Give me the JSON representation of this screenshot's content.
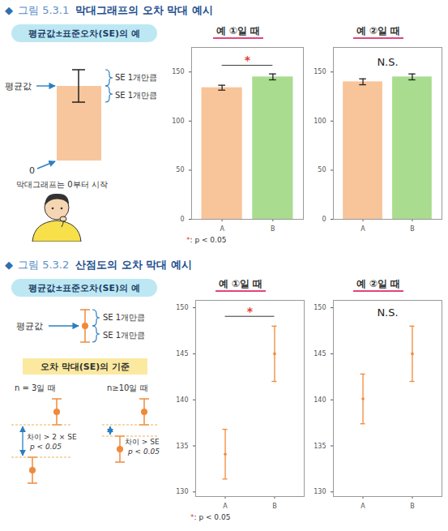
{
  "figures": [
    {
      "bullet": "◆",
      "number": "그림 5.3.1",
      "title": "막대그래프의 오차 막대 예시",
      "schematic": {
        "label": "평균값±표준오차(SE)의 예",
        "mean": "평균값",
        "se_upper": "SE 1개만큼",
        "se_lower": "SE 1개만큼",
        "zero": "0",
        "zero_note": "막대그래프는 0부터 시작"
      }
    },
    {
      "bullet": "◆",
      "number": "그림 5.3.2",
      "title": "산점도의 오차 막대 예시",
      "schematic": {
        "label": "평균값±표준오차(SE)의 예",
        "mean": "평균값",
        "se_upper": "SE 1개만큼",
        "se_lower": "SE 1개만큼",
        "criteria": {
          "title": "오차 막대(SE)의 기준",
          "cases": [
            {
              "n": "n = 3일 때",
              "rule": "차이 > 2 × SE",
              "p": "p < 0.05"
            },
            {
              "n": "n≥10일 때",
              "rule": "차이 > SE",
              "p": "p < 0.05"
            }
          ]
        }
      }
    }
  ],
  "chart_data": [
    {
      "type": "bar",
      "title": "예 ①일 때",
      "categories": [
        "A",
        "B"
      ],
      "values": [
        134,
        145
      ],
      "errors": [
        2.5,
        3
      ],
      "colors": [
        "#f8c49a",
        "#a9dc8f"
      ],
      "ylim": [
        0,
        175
      ],
      "yticks": [
        0,
        50,
        100,
        150
      ],
      "annotation": {
        "text": "*",
        "between": [
          "A",
          "B"
        ]
      },
      "note": "*: p < 0.05"
    },
    {
      "type": "bar",
      "title": "예 ②일 때",
      "categories": [
        "A",
        "B"
      ],
      "values": [
        140,
        145
      ],
      "errors": [
        3,
        3
      ],
      "colors": [
        "#f8c49a",
        "#a9dc8f"
      ],
      "ylim": [
        0,
        175
      ],
      "yticks": [
        0,
        50,
        100,
        150
      ],
      "annotation": {
        "text": "N.S."
      }
    },
    {
      "type": "scatter",
      "title": "예 ①일 때",
      "categories": [
        "A",
        "B"
      ],
      "values": [
        134.1,
        145
      ],
      "errors": [
        2.7,
        3
      ],
      "color": "#ef8a3a",
      "marker": "circle",
      "ylim": [
        129.5,
        150.8
      ],
      "yticks": [
        130,
        135,
        140,
        145,
        150
      ],
      "annotation": {
        "text": "*",
        "between": [
          "A",
          "B"
        ]
      },
      "note": "*: p < 0.05"
    },
    {
      "type": "scatter",
      "title": "예 ②일 때",
      "categories": [
        "A",
        "B"
      ],
      "values": [
        140.1,
        145
      ],
      "errors": [
        2.7,
        3
      ],
      "color": "#ef8a3a",
      "marker": "circle",
      "ylim": [
        129.5,
        150.8
      ],
      "yticks": [
        130,
        135,
        140,
        145,
        150
      ],
      "annotation": {
        "text": "N.S."
      }
    }
  ]
}
